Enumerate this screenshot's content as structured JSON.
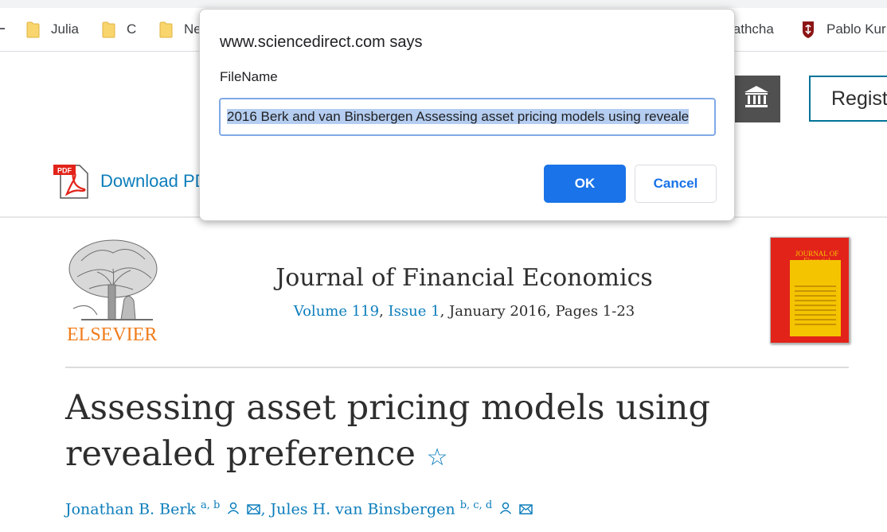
{
  "bookmarks": [
    {
      "label": "Julia",
      "icon": "folder-icon"
    },
    {
      "label": "C",
      "icon": "folder-icon"
    },
    {
      "label": "Ne",
      "icon": "folder-icon"
    },
    {
      "label": "lathcha",
      "icon": ""
    },
    {
      "label": "Pablo Kur",
      "icon": "stanford-icon"
    }
  ],
  "header": {
    "institution_icon": "institution-icon",
    "register_label": "Regist"
  },
  "download": {
    "label": "Download PD",
    "icon": "pdf-icon"
  },
  "journal": {
    "publisher": "ELSEVIER",
    "name": "Journal of Financial Economics",
    "volume": "Volume 119",
    "sep": ", ",
    "issue": "Issue 1",
    "details": ", January 2016, Pages 1-23",
    "cover_text": "JOURNAL OF Financial ECONOMICS"
  },
  "article": {
    "title": "Assessing asset pricing models using revealed preference",
    "star": "☆",
    "authors": [
      {
        "name": "Jonathan B. Berk",
        "affil": "a, b"
      },
      {
        "name": "Jules H. van Binsbergen",
        "affil": "b, c, d"
      }
    ],
    "author_sep": ", "
  },
  "dialog": {
    "title": "www.sciencedirect.com says",
    "label": "FileName",
    "value": "2016 Berk and van Binsbergen Assessing asset pricing models using reveale",
    "ok_label": "OK",
    "cancel_label": "Cancel"
  },
  "colors": {
    "link": "#0c7dbb",
    "elsevier_orange": "#f07c1a",
    "dialog_primary": "#1a73e8",
    "selection": "#b4cdf0"
  }
}
